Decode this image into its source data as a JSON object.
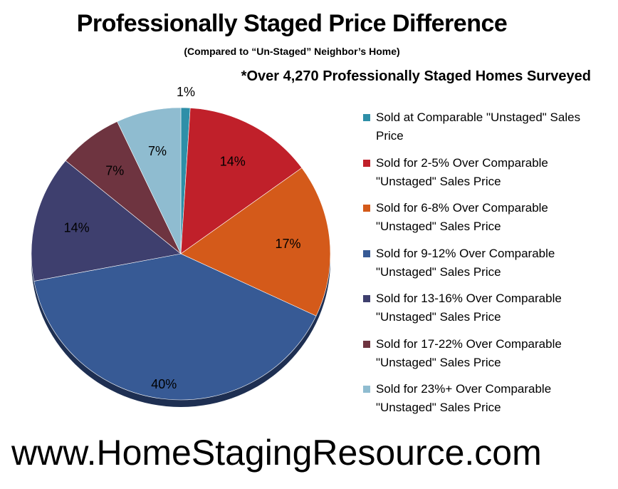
{
  "header": {
    "title": "Professionally Staged Price Difference",
    "subtitle": "(Compared to “Un-Staged” Neighbor’s Home)",
    "survey_note": "*Over 4,270 Professionally Staged Homes Surveyed"
  },
  "footer": {
    "url": "www.HomeStagingResource.com"
  },
  "chart_data": {
    "type": "pie",
    "title": "Professionally Staged Price Difference",
    "subtitle": "(Compared to “Un-Staged” Neighbor’s Home)",
    "legend_position": "right",
    "slices": [
      {
        "label": "Sold at Comparable \"Unstaged\" Sales Price",
        "value": 1,
        "display": "1%",
        "color": "#2e8fa8"
      },
      {
        "label": "Sold for 2-5% Over Comparable \"Unstaged\" Sales Price",
        "value": 14,
        "display": "14%",
        "color": "#c0202a"
      },
      {
        "label": "Sold for 6-8% Over Comparable \"Unstaged\" Sales Price",
        "value": 17,
        "display": "17%",
        "color": "#d45a1a"
      },
      {
        "label": "Sold for 9-12% Over Comparable \"Unstaged\" Sales Price",
        "value": 40,
        "display": "40%",
        "color": "#375a95"
      },
      {
        "label": "Sold for 13-16% Over Comparable \"Unstaged\" Sales Price",
        "value": 14,
        "display": "14%",
        "color": "#3e3f6e"
      },
      {
        "label": "Sold for 17-22% Over Comparable \"Unstaged\" Sales Price",
        "value": 7,
        "display": "7%",
        "color": "#6e3440"
      },
      {
        "label": "Sold for 23%+ Over Comparable \"Unstaged\" Sales Price",
        "value": 7,
        "display": "7%",
        "color": "#8fbcd0"
      }
    ]
  }
}
